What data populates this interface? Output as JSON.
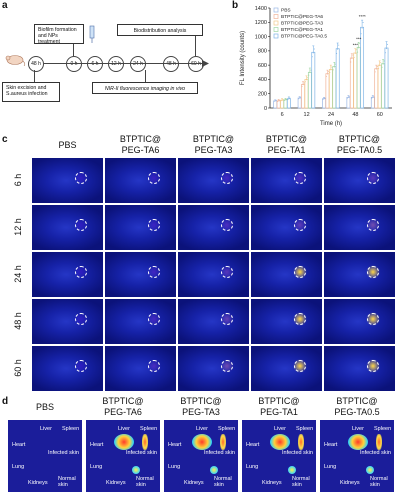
{
  "panel_a": {
    "letter": "a",
    "skin_box": "Skin excision and S.aureus infection",
    "biofilm_box": "Biofilm formation and NPs treatment",
    "bio_box": "Biodistribution analysis",
    "imaging_box": "NIR-II fluorescence imaging in vivo",
    "nodes": [
      "48 h",
      "0 h",
      "6 h",
      "12 h",
      "24 h",
      "48 h",
      "60 h"
    ]
  },
  "panel_b": {
    "letter": "b"
  },
  "chart_data": {
    "type": "bar",
    "title": "",
    "xlabel": "Time (h)",
    "ylabel": "FL Intensity (counts)",
    "ylim": [
      0,
      1400
    ],
    "yticks": [
      0,
      200,
      400,
      600,
      800,
      1000,
      1200,
      1400
    ],
    "categories": [
      "6",
      "12",
      "24",
      "48",
      "60"
    ],
    "series": [
      {
        "name": "PBS",
        "color": "#9ab7e5",
        "values": [
          100,
          140,
          130,
          150,
          150
        ]
      },
      {
        "name": "BTPTIC@PEG-TA6",
        "color": "#f0b49a",
        "values": [
          100,
          330,
          480,
          700,
          550
        ]
      },
      {
        "name": "BTPTIC@PEG-TA3",
        "color": "#f3c98a",
        "values": [
          110,
          400,
          540,
          770,
          600
        ]
      },
      {
        "name": "BTPTIC@PEG-TA1",
        "color": "#9fd6a4",
        "values": [
          115,
          500,
          580,
          850,
          620
        ]
      },
      {
        "name": "BTPTIC@PEG-TA0.5",
        "color": "#7fb4e6",
        "values": [
          130,
          780,
          830,
          1130,
          840
        ]
      }
    ],
    "errors": [
      [
        15,
        20,
        20,
        25,
        25
      ],
      [
        20,
        40,
        50,
        60,
        50
      ],
      [
        20,
        50,
        60,
        60,
        60
      ],
      [
        20,
        60,
        60,
        70,
        60
      ],
      [
        25,
        90,
        80,
        100,
        90
      ]
    ],
    "annotations": [
      "****",
      "***",
      "***"
    ],
    "legend_placement": "top-left",
    "grid": false
  },
  "panel_c": {
    "letter": "c",
    "columns": [
      {
        "line1": "PBS",
        "line2": ""
      },
      {
        "line1": "BTPTIC@",
        "line2": "PEG-TA6"
      },
      {
        "line1": "BTPTIC@",
        "line2": "PEG-TA3"
      },
      {
        "line1": "BTPTIC@",
        "line2": "PEG-TA1"
      },
      {
        "line1": "BTPTIC@",
        "line2": "PEG-TA0.5"
      }
    ],
    "rows": [
      "6 h",
      "12 h",
      "24 h",
      "48 h",
      "60 h"
    ]
  },
  "panel_d": {
    "letter": "d",
    "columns": [
      {
        "line1": "PBS",
        "line2": ""
      },
      {
        "line1": "BTPTIC@",
        "line2": "PEG-TA6"
      },
      {
        "line1": "BTPTIC@",
        "line2": "PEG-TA3"
      },
      {
        "line1": "BTPTIC@",
        "line2": "PEG-TA1"
      },
      {
        "line1": "BTPTIC@",
        "line2": "PEG-TA0.5"
      }
    ],
    "organs": {
      "heart": "Heart",
      "liver": "Liver",
      "spleen": "Spleen",
      "lung": "Lung",
      "infected": "Infected skin",
      "kidneys": "Kidneys",
      "normal": "Normal skin"
    }
  }
}
